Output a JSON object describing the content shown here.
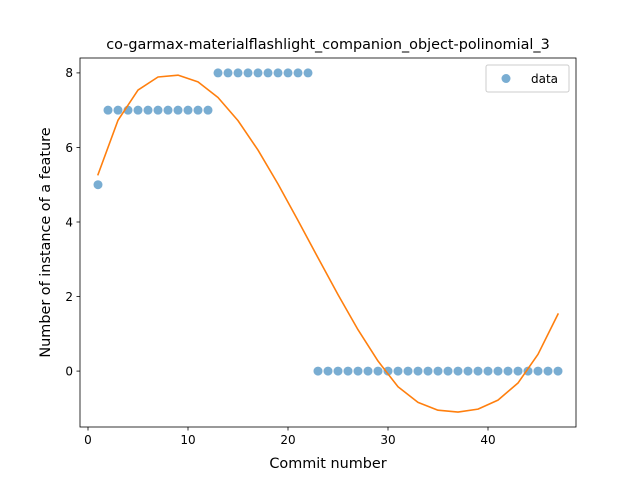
{
  "chart_data": {
    "type": "scatter",
    "title": "co-garmax-materialflashlight_companion_object-polinomial_3",
    "xlabel": "Commit number",
    "ylabel": "Number of instance of a feature",
    "xlim": [
      -0.8,
      48.8
    ],
    "ylim": [
      -1.5,
      8.4
    ],
    "xticks": [
      0,
      10,
      20,
      30,
      40
    ],
    "yticks": [
      0,
      2,
      4,
      6,
      8
    ],
    "grid": false,
    "legend": {
      "position": "top-right",
      "entries": [
        "data"
      ]
    },
    "series": [
      {
        "name": "data",
        "kind": "scatter",
        "color": "#1f77b4",
        "x": [
          1,
          2,
          3,
          4,
          5,
          6,
          7,
          8,
          9,
          10,
          11,
          12,
          13,
          14,
          15,
          16,
          17,
          18,
          19,
          20,
          21,
          22,
          23,
          24,
          25,
          26,
          27,
          28,
          29,
          30,
          31,
          32,
          33,
          34,
          35,
          36,
          37,
          38,
          39,
          40,
          41,
          42,
          43,
          44,
          45,
          46,
          47
        ],
        "y": [
          5,
          7,
          7,
          7,
          7,
          7,
          7,
          7,
          7,
          7,
          7,
          7,
          8,
          8,
          8,
          8,
          8,
          8,
          8,
          8,
          8,
          8,
          0,
          0,
          0,
          0,
          0,
          0,
          0,
          0,
          0,
          0,
          0,
          0,
          0,
          0,
          0,
          0,
          0,
          0,
          0,
          0,
          0,
          0,
          0,
          0,
          0
        ]
      },
      {
        "kind": "line",
        "color": "#ff7f0e",
        "fit": "polynomial degree 3",
        "x": [
          1,
          3,
          5,
          7,
          9,
          11,
          13,
          15,
          17,
          19,
          21,
          23,
          25,
          27,
          29,
          31,
          33,
          35,
          37,
          39,
          41,
          43,
          45,
          47
        ],
        "y": [
          5.27,
          6.73,
          7.54,
          7.89,
          7.94,
          7.76,
          7.34,
          6.72,
          5.93,
          5.02,
          4.04,
          3.04,
          2.05,
          1.11,
          0.27,
          -0.42,
          -0.84,
          -1.05,
          -1.1,
          -1.02,
          -0.78,
          -0.32,
          0.45,
          1.53
        ]
      }
    ]
  }
}
